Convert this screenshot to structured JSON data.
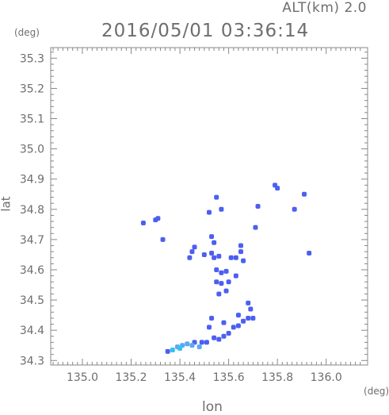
{
  "header": {
    "alt_label": "ALT(km) 2.0",
    "timestamp": "2016/05/01 03:36:14",
    "y_unit": "(deg)",
    "x_unit": "(deg)"
  },
  "axes": {
    "ylabel": "lat",
    "xlabel": "lon",
    "x_ticks": [
      "135.0",
      "135.2",
      "135.4",
      "135.6",
      "135.8",
      "136.0"
    ],
    "y_ticks": [
      "34.3",
      "34.4",
      "34.5",
      "34.6",
      "34.7",
      "34.8",
      "34.9",
      "35.0",
      "35.1",
      "35.2",
      "35.3"
    ]
  },
  "chart_data": {
    "type": "scatter",
    "title": "2016/05/01 03:36:14",
    "xlabel": "lon",
    "ylabel": "lat",
    "xlim": [
      134.87,
      136.17
    ],
    "ylim": [
      34.285,
      35.335
    ],
    "x_ticks": [
      135.0,
      135.2,
      135.4,
      135.6,
      135.8,
      136.0
    ],
    "y_ticks": [
      34.3,
      34.4,
      34.5,
      34.6,
      34.7,
      34.8,
      34.9,
      35.0,
      35.1,
      35.2,
      35.3
    ],
    "grid": false,
    "colors": {
      "main": "#4c5ff0",
      "light": "#5aa9f2",
      "cyan": "#33c2ee",
      "axis": "#888888"
    },
    "echoes": [
      [
        135.25,
        34.755,
        "main"
      ],
      [
        135.31,
        34.77,
        "main"
      ],
      [
        135.3,
        34.765,
        "main"
      ],
      [
        135.33,
        34.7,
        "main"
      ],
      [
        135.44,
        34.64,
        "main"
      ],
      [
        135.45,
        34.66,
        "main"
      ],
      [
        135.46,
        34.675,
        "main"
      ],
      [
        135.5,
        34.65,
        "main"
      ],
      [
        135.53,
        34.655,
        "main"
      ],
      [
        135.54,
        34.64,
        "main"
      ],
      [
        135.56,
        34.645,
        "main"
      ],
      [
        135.55,
        34.6,
        "main"
      ],
      [
        135.57,
        34.59,
        "main"
      ],
      [
        135.59,
        34.595,
        "main"
      ],
      [
        135.55,
        34.56,
        "main"
      ],
      [
        135.57,
        34.555,
        "main"
      ],
      [
        135.56,
        34.52,
        "main"
      ],
      [
        135.61,
        34.64,
        "main"
      ],
      [
        135.63,
        34.64,
        "main"
      ],
      [
        135.65,
        34.68,
        "main"
      ],
      [
        135.65,
        34.66,
        "main"
      ],
      [
        135.66,
        34.63,
        "main"
      ],
      [
        135.63,
        34.58,
        "main"
      ],
      [
        135.6,
        34.56,
        "main"
      ],
      [
        135.59,
        34.53,
        "main"
      ],
      [
        135.57,
        34.8,
        "main"
      ],
      [
        135.52,
        34.79,
        "main"
      ],
      [
        135.55,
        34.84,
        "main"
      ],
      [
        135.53,
        34.71,
        "main"
      ],
      [
        135.54,
        34.69,
        "main"
      ],
      [
        135.72,
        34.81,
        "main"
      ],
      [
        135.79,
        34.88,
        "main"
      ],
      [
        135.8,
        34.87,
        "main"
      ],
      [
        135.87,
        34.8,
        "main"
      ],
      [
        135.91,
        34.85,
        "main"
      ],
      [
        135.93,
        34.655,
        "main"
      ],
      [
        135.71,
        34.74,
        "main"
      ],
      [
        135.53,
        34.44,
        "main"
      ],
      [
        135.58,
        34.425,
        "main"
      ],
      [
        135.62,
        34.41,
        "main"
      ],
      [
        135.64,
        34.415,
        "main"
      ],
      [
        135.66,
        34.43,
        "main"
      ],
      [
        135.68,
        34.44,
        "main"
      ],
      [
        135.69,
        34.47,
        "main"
      ],
      [
        135.7,
        34.44,
        "main"
      ],
      [
        135.68,
        34.49,
        "main"
      ],
      [
        135.64,
        34.45,
        "main"
      ],
      [
        135.52,
        34.41,
        "main"
      ],
      [
        135.54,
        34.375,
        "main"
      ],
      [
        135.56,
        34.37,
        "main"
      ],
      [
        135.58,
        34.38,
        "main"
      ],
      [
        135.6,
        34.39,
        "main"
      ],
      [
        135.49,
        34.36,
        "main"
      ],
      [
        135.46,
        34.36,
        "main"
      ],
      [
        135.43,
        34.355,
        "light"
      ],
      [
        135.41,
        34.35,
        "light"
      ],
      [
        135.39,
        34.345,
        "light"
      ],
      [
        135.45,
        34.35,
        "light"
      ],
      [
        135.37,
        34.335,
        "cyan"
      ],
      [
        135.35,
        34.33,
        "main"
      ],
      [
        135.4,
        34.34,
        "cyan"
      ],
      [
        135.48,
        34.345,
        "light"
      ],
      [
        135.51,
        34.36,
        "main"
      ]
    ]
  }
}
